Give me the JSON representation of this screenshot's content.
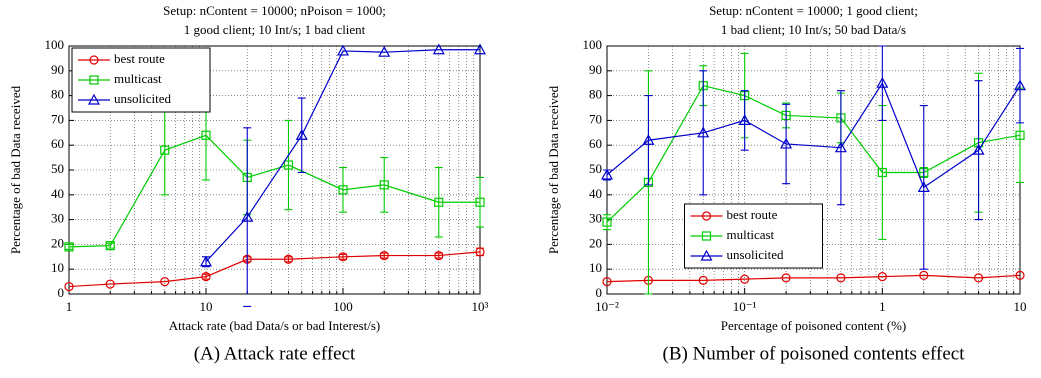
{
  "chart_data": [
    {
      "type": "line",
      "title": [
        "Setup: nContent = 10000; nPoison = 1000;",
        "1 good client; 10 Int/s; 1 bad client"
      ],
      "xlabel": "Attack rate (bad Data/s or bad Interest/s)",
      "ylabel": "Percentage of bad Data received",
      "caption": "(A) Attack rate effect",
      "xscale": "log",
      "grid": true,
      "legend": "upper left",
      "xlim": [
        1,
        1000
      ],
      "xticks": [
        1,
        10,
        100,
        {
          "value": 1000,
          "label": "10³"
        }
      ],
      "ylim": [
        0,
        100
      ],
      "yticks": [
        0,
        10,
        20,
        30,
        40,
        50,
        60,
        70,
        80,
        90,
        100
      ],
      "series": [
        {
          "name": "best route",
          "color": "#e00000",
          "marker": "circle",
          "x": [
            1,
            2,
            5,
            10,
            20,
            40,
            100,
            200,
            500,
            1000
          ],
          "values": [
            3,
            4,
            5,
            7,
            14,
            14,
            15,
            15.5,
            15.5,
            17
          ],
          "errors": [
            null,
            null,
            null,
            1,
            1,
            1,
            1,
            1,
            1,
            1.5
          ]
        },
        {
          "name": "multicast",
          "color": "#00cc00",
          "marker": "square",
          "x": [
            1,
            2,
            5,
            10,
            20,
            40,
            100,
            200,
            500,
            1000
          ],
          "values": [
            19,
            19.5,
            58,
            64,
            47,
            52,
            42,
            44,
            37,
            37
          ],
          "errors": [
            1,
            1,
            18,
            18,
            15,
            18,
            9,
            11,
            14,
            10
          ]
        },
        {
          "name": "unsolicited",
          "color": "#0000cc",
          "marker": "triangle",
          "x": [
            10,
            20,
            50,
            100,
            200,
            500,
            1000
          ],
          "values": [
            13,
            31,
            64,
            98,
            97.5,
            98.5,
            98.5
          ],
          "errors": [
            2,
            36,
            15,
            null,
            null,
            null,
            null
          ]
        }
      ]
    },
    {
      "type": "line",
      "title": [
        "Setup: nContent = 10000; 1 good client;",
        "1 bad client; 10 Int/s; 50 bad Data/s"
      ],
      "xlabel": "Percentage of poisoned content (%)",
      "ylabel": "Percentage of bad Data received",
      "caption": "(B) Number of poisoned contents effect",
      "xscale": "log",
      "grid": true,
      "legend": "lower center",
      "xlim": [
        0.01,
        10
      ],
      "xticks": [
        {
          "value": 0.01,
          "label": "10⁻²"
        },
        {
          "value": 0.1,
          "label": "10⁻¹"
        },
        1,
        10
      ],
      "ylim": [
        0,
        100
      ],
      "yticks": [
        0,
        10,
        20,
        30,
        40,
        50,
        60,
        70,
        80,
        90,
        100
      ],
      "series": [
        {
          "name": "best route",
          "color": "#e00000",
          "marker": "circle",
          "x": [
            0.01,
            0.02,
            0.05,
            0.1,
            0.2,
            0.5,
            1,
            2,
            5,
            10
          ],
          "values": [
            5,
            5.5,
            5.5,
            6,
            6.5,
            6.5,
            7,
            7.5,
            6.5,
            7.5
          ],
          "errors": [
            null,
            null,
            null,
            null,
            null,
            null,
            null,
            null,
            null,
            null
          ]
        },
        {
          "name": "multicast",
          "color": "#00cc00",
          "marker": "square",
          "x": [
            0.01,
            0.02,
            0.05,
            0.1,
            0.2,
            0.5,
            1,
            2,
            5,
            10
          ],
          "values": [
            29,
            45,
            84,
            80,
            72,
            71,
            49,
            49,
            61,
            64
          ],
          "errors": [
            3,
            45,
            8,
            17,
            5,
            10,
            27,
            2,
            28,
            19
          ]
        },
        {
          "name": "unsolicited",
          "color": "#0000cc",
          "marker": "triangle",
          "x": [
            0.01,
            0.02,
            0.05,
            0.1,
            0.2,
            0.5,
            1,
            2,
            5,
            10
          ],
          "values": [
            48,
            62,
            65,
            70,
            60.5,
            59,
            85,
            43,
            58,
            84
          ],
          "errors": [
            2,
            18,
            25,
            12,
            16,
            23,
            15,
            33,
            28,
            15
          ]
        }
      ]
    }
  ]
}
